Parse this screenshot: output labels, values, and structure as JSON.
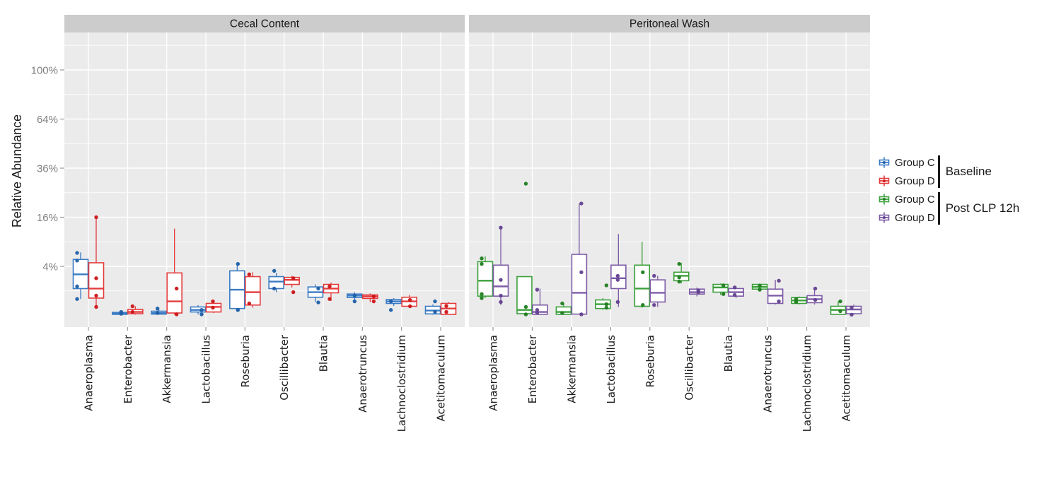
{
  "y_axis": {
    "title": "Relative Abundance",
    "tick_labels": [
      "100%",
      "64%",
      "36%",
      "16%",
      "4%"
    ],
    "tick_values": [
      100,
      64,
      36,
      16,
      4
    ],
    "minor_gridline_values": [
      121,
      81,
      49,
      25,
      9,
      1
    ],
    "scale": "sqrt",
    "unit": "%"
  },
  "chart_data": {
    "type": "boxplot",
    "y_scale": "sqrt",
    "y_unit": "percent relative abundance",
    "ylabel": "Relative Abundance",
    "y_ticks": [
      100,
      64,
      36,
      16,
      4
    ],
    "grid": "white on grey panel",
    "legend_position": "right",
    "box_stats_format": "[whisker_low, q1, median, q3, whisker_high] in percent",
    "categories": [
      "Anaeroplasma",
      "Enterobacter",
      "Akkermansia",
      "Lactobacillus",
      "Roseburia",
      "Oscillibacter",
      "Blautia",
      "Anaerotruncus",
      "Lachnoclostridium",
      "Acetitomaculum"
    ],
    "panels": [
      {
        "title": "Cecal Content",
        "series": [
          {
            "name": "Group C",
            "phase": "Baseline",
            "color": "#3A7BC4",
            "point_color": "#1E5FA8",
            "boxes": [
              [
                0.45,
                1.2,
                2.8,
                5.2,
                6.6
              ],
              [
                0.001,
                0.002,
                0.006,
                0.015,
                0.03
              ],
              [
                0.001,
                0.003,
                0.01,
                0.03,
                0.06
              ],
              [
                0.002,
                0.02,
                0.05,
                0.12,
                0.18
              ],
              [
                0.02,
                0.08,
                1.1,
                3.3,
                4.5
              ],
              [
                0.9,
                1.2,
                1.9,
                2.5,
                3.0
              ],
              [
                0.3,
                0.55,
                0.9,
                1.35,
                1.6
              ],
              [
                0.4,
                0.53,
                0.65,
                0.76,
                0.9
              ],
              [
                0.15,
                0.24,
                0.33,
                0.42,
                0.5
              ],
              [
                0.001,
                0.004,
                0.04,
                0.14,
                0.2
              ]
            ],
            "points": [
              [
                6.5,
                5.0,
                1.4,
                0.45
              ],
              [
                0.02,
                0.005
              ],
              [
                0.08,
                0.01
              ],
              [
                0.05,
                0.002
              ],
              [
                4.4,
                0.05
              ],
              [
                3.3,
                1.2
              ],
              [
                1.2,
                0.28
              ],
              [
                0.65,
                0.33
              ],
              [
                0.33,
                0.05
              ],
              [
                0.33,
                0.02
              ]
            ]
          },
          {
            "name": "Group D",
            "phase": "Baseline",
            "color": "#E43B3C",
            "point_color": "#CC1517",
            "boxes": [
              [
                0.12,
                0.5,
                1.2,
                4.6,
                15.9
              ],
              [
                0.001,
                0.005,
                0.02,
                0.06,
                0.14
              ],
              [
                0.001,
                0.01,
                0.33,
                3.0,
                12.5
              ],
              [
                0.01,
                0.02,
                0.12,
                0.24,
                0.33
              ],
              [
                0.1,
                0.18,
                0.9,
                2.5,
                3.1
              ],
              [
                1.3,
                1.6,
                2.1,
                2.4,
                2.6
              ],
              [
                0.35,
                0.85,
                1.2,
                1.6,
                1.8
              ],
              [
                0.3,
                0.48,
                0.6,
                0.7,
                0.8
              ],
              [
                0.1,
                0.14,
                0.33,
                0.55,
                0.7
              ],
              [
                0.001,
                0.002,
                0.08,
                0.24,
                0.3
              ]
            ],
            "points": [
              [
                16.0,
                2.3,
                0.65,
                0.12
              ],
              [
                0.14,
                0.02
              ],
              [
                1.2,
                0.002
              ],
              [
                0.33,
                0.1
              ],
              [
                2.8,
                0.24
              ],
              [
                2.3,
                0.9
              ],
              [
                1.4,
                0.45
              ],
              [
                0.6,
                0.33
              ],
              [
                0.4,
                0.14
              ],
              [
                0.15,
                0.02
              ]
            ]
          }
        ]
      },
      {
        "title": "Peritoneal Wash",
        "series": [
          {
            "name": "Group C",
            "phase": "Post CLP 12h",
            "color": "#3BA03B",
            "point_color": "#1D7D1D",
            "boxes": [
              [
                0.5,
                0.62,
                2.0,
                4.8,
                5.8
              ],
              [
                0.001,
                0.005,
                0.05,
                2.5,
                2.5
              ],
              [
                0.001,
                0.002,
                0.02,
                0.12,
                0.24
              ],
              [
                0.05,
                0.08,
                0.21,
                0.4,
                0.5
              ],
              [
                0.1,
                0.14,
                1.2,
                4.2,
                9.0
              ],
              [
                1.7,
                2.0,
                2.6,
                3.1,
                4.6
              ],
              [
                0.7,
                0.9,
                1.3,
                1.6,
                1.7
              ],
              [
                1.0,
                1.15,
                1.35,
                1.6,
                1.7
              ],
              [
                0.2,
                0.24,
                0.37,
                0.53,
                0.6
              ],
              [
                0.001,
                0.002,
                0.05,
                0.14,
                0.33
              ]
            ],
            "points": [
              [
                5.4,
                4.4,
                0.76,
                0.5
              ],
              [
                28.8,
                0.12,
                0.002
              ],
              [
                0.24,
                0.01
              ],
              [
                1.5,
                0.21,
                0.1
              ],
              [
                3.1,
                0.18
              ],
              [
                4.4,
                2.4,
                1.9
              ],
              [
                1.5,
                0.76
              ],
              [
                1.45,
                1.1
              ],
              [
                0.45,
                0.3
              ],
              [
                0.33,
                0.03
              ]
            ]
          },
          {
            "name": "Group D",
            "phase": "Post CLP 12h",
            "color": "#7D5BA6",
            "point_color": "#63418F",
            "boxes": [
              [
                0.18,
                0.62,
                1.4,
                4.2,
                12.8
              ],
              [
                0.001,
                0.002,
                0.02,
                0.18,
                1.2
              ],
              [
                0.001,
                0.003,
                0.85,
                6.2,
                20.8
              ],
              [
                0.12,
                1.2,
                2.3,
                4.2,
                11.0
              ],
              [
                0.12,
                0.3,
                0.85,
                2.1,
                2.6
              ],
              [
                0.6,
                0.76,
                0.9,
                1.15,
                1.3
              ],
              [
                0.5,
                0.62,
                0.9,
                1.2,
                1.4
              ],
              [
                0.2,
                0.24,
                0.65,
                1.15,
                2.1
              ],
              [
                0.2,
                0.27,
                0.44,
                0.65,
                1.2
              ],
              [
                0.001,
                0.005,
                0.06,
                0.14,
                0.2
              ]
            ],
            "points": [
              [
                12.8,
                2.1,
                0.65,
                0.3
              ],
              [
                1.1,
                0.05,
                0.01
              ],
              [
                20.8,
                3.1,
                0.002
              ],
              [
                2.6,
                2.1,
                0.3
              ],
              [
                2.6,
                0.18
              ],
              [
                1.05,
                0.9
              ],
              [
                1.3,
                0.7
              ],
              [
                2.0,
                0.33
              ],
              [
                1.2,
                0.4
              ],
              [
                0.1,
                0.001
              ]
            ]
          }
        ]
      }
    ]
  },
  "legend": {
    "groups": [
      {
        "label": "Baseline",
        "entries": [
          {
            "label": "Group C",
            "color": "#3A7BC4",
            "point_color": "#1E5FA8"
          },
          {
            "label": "Group D",
            "color": "#E43B3C",
            "point_color": "#CC1517"
          }
        ]
      },
      {
        "label": "Post CLP 12h",
        "entries": [
          {
            "label": "Group C",
            "color": "#3BA03B",
            "point_color": "#1D7D1D"
          },
          {
            "label": "Group D",
            "color": "#7D5BA6",
            "point_color": "#63418F"
          }
        ]
      }
    ]
  },
  "colors": {
    "panel_bg": "#EBEBEB",
    "strip_bg": "#CCCCCC",
    "gridline": "#FFFFFF",
    "axis_tick_text": "#7F7F7F",
    "text": "#1A1A1A",
    "tick_mark": "#999999"
  }
}
